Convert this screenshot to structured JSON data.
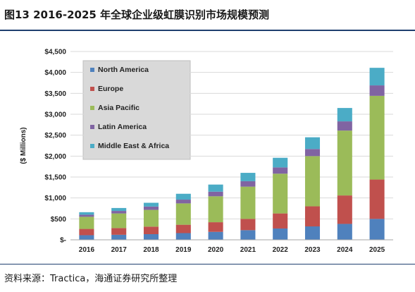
{
  "header": {
    "title": "图13 2016-2025 年全球企业级虹膜识别市场规模预测"
  },
  "footer": {
    "source": "资料来源：Tractica，海通证券研究所整理"
  },
  "chart_data": {
    "type": "bar",
    "stacked": true,
    "ylabel": "($ Millions)",
    "ylim": [
      0,
      4500
    ],
    "yticks": [
      "$-",
      "$500",
      "$1,000",
      "$1,500",
      "$2,000",
      "$2,500",
      "$3,000",
      "$3,500",
      "$4,000",
      "$4,500"
    ],
    "categories": [
      "2016",
      "2017",
      "2018",
      "2019",
      "2020",
      "2021",
      "2022",
      "2023",
      "2024",
      "2025"
    ],
    "legend_position": "top-left",
    "series": [
      {
        "name": "North America",
        "color": "#4f81bd",
        "values": [
          110,
          120,
          135,
          160,
          190,
          230,
          270,
          320,
          380,
          500
        ]
      },
      {
        "name": "Europe",
        "color": "#c0504d",
        "values": [
          150,
          160,
          180,
          200,
          230,
          270,
          360,
          480,
          680,
          940
        ]
      },
      {
        "name": "Asia Pacific",
        "color": "#9bbb59",
        "values": [
          290,
          350,
          400,
          510,
          620,
          770,
          950,
          1200,
          1550,
          2000
        ]
      },
      {
        "name": "Latin America",
        "color": "#8064a2",
        "values": [
          50,
          60,
          80,
          90,
          110,
          130,
          150,
          170,
          220,
          250
        ]
      },
      {
        "name": "Middle East & Africa",
        "color": "#4bacc6",
        "values": [
          60,
          70,
          90,
          140,
          170,
          200,
          230,
          280,
          320,
          420
        ]
      }
    ]
  }
}
